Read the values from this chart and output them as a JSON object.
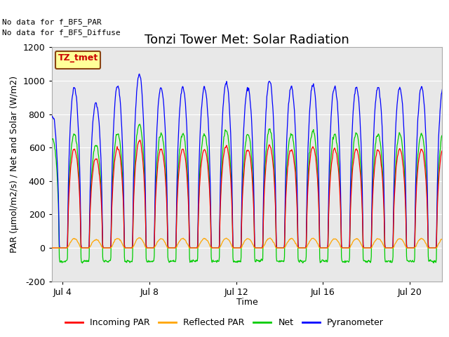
{
  "title": "Tonzi Tower Met: Solar Radiation",
  "ylabel": "PAR (μmol/m2/s) / Net and Solar (W/m2)",
  "xlabel": "Time",
  "no_data_text1": "No data for f_BF5_PAR",
  "no_data_text2": "No data for f_BF5_Diffuse",
  "legend_label": "TZ_tmet",
  "ylim": [
    -200,
    1200
  ],
  "xlim_start": 3.5,
  "xlim_end": 21.5,
  "xticks": [
    4,
    8,
    12,
    16,
    20
  ],
  "xtick_labels": [
    "Jul 4",
    "Jul 8",
    "Jul 12",
    "Jul 16",
    "Jul 20"
  ],
  "yticks": [
    -200,
    0,
    200,
    400,
    600,
    800,
    1000,
    1200
  ],
  "colors": {
    "incoming_par": "#ff0000",
    "reflected_par": "#ffa500",
    "net": "#00cc00",
    "pyranometer": "#0000ff"
  },
  "legend_entries": [
    "Incoming PAR",
    "Reflected PAR",
    "Net",
    "Pyranometer"
  ],
  "fig_bg_color": "#ffffff",
  "plot_bg_color": "#e8e8e8",
  "grid_color": "#ffffff",
  "title_fontsize": 13,
  "label_fontsize": 9,
  "tick_fontsize": 9,
  "legend_box_color": "#ffff99",
  "legend_box_edge": "#8B4513",
  "legend_title_color": "#cc0000"
}
